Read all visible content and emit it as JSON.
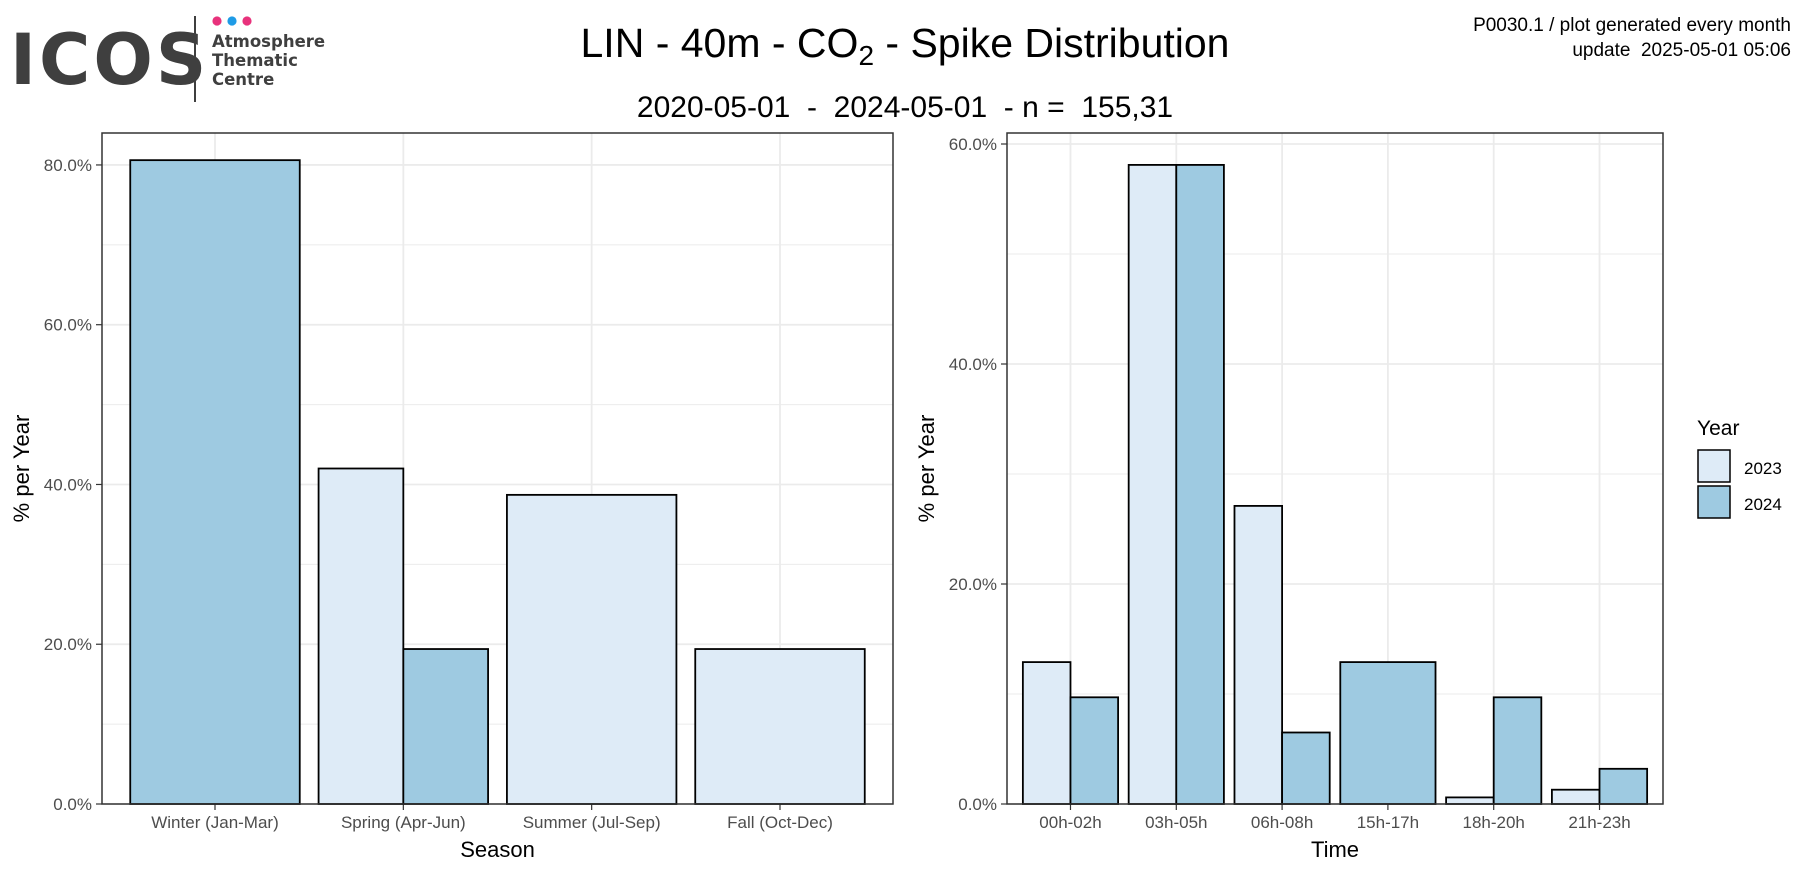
{
  "header": {
    "logo": {
      "wordmark": "ICOS",
      "line1": "Atmosphere",
      "line2": "Thematic",
      "line3": "Centre",
      "dot_colors": [
        "#e8327c",
        "#1e9be6",
        "#e8327c"
      ]
    },
    "title_prefix": "LIN - 40m - CO",
    "title_sub": "2",
    "title_suffix": " - Spike Distribution",
    "subtitle": "2020-05-01  -  2024-05-01  - n =  155,31",
    "meta_line1": "P0030.1 / plot generated every month",
    "meta_line2": "update  2025-05-01 05:06"
  },
  "legend": {
    "title": "Year",
    "entries": [
      {
        "label": "2023",
        "color": "#deebf7"
      },
      {
        "label": "2024",
        "color": "#9ecae1"
      }
    ],
    "placement": "right"
  },
  "colors": {
    "series_2023": "#deebf7",
    "series_2024": "#9ecae1",
    "grid": "#ebebeb",
    "axis_text": "#4d4d4d"
  },
  "chart_data": [
    {
      "type": "bar",
      "xlabel": "Season",
      "ylabel": "% per Year",
      "ylim": [
        0,
        84
      ],
      "ticks": [
        0,
        20,
        40,
        60,
        80
      ],
      "tick_labels": [
        "0.0%",
        "20.0%",
        "40.0%",
        "60.0%",
        "80.0%"
      ],
      "grid": true,
      "categories": [
        "Winter (Jan-Mar)",
        "Spring (Apr-Jun)",
        "Summer (Jul-Sep)",
        "Fall (Oct-Dec)"
      ],
      "series": [
        {
          "name": "2023",
          "values": [
            null,
            42,
            38.7,
            19.4
          ]
        },
        {
          "name": "2024",
          "values": [
            80.6,
            19.4,
            null,
            null
          ]
        }
      ]
    },
    {
      "type": "bar",
      "xlabel": "Time",
      "ylabel": "% per Year",
      "ylim": [
        0,
        61
      ],
      "ticks": [
        0,
        20,
        40,
        60
      ],
      "tick_labels": [
        "0.0%",
        "20.0%",
        "40.0%",
        "60.0%"
      ],
      "grid": true,
      "categories": [
        "00h-02h",
        "03h-05h",
        "06h-08h",
        "15h-17h",
        "18h-20h",
        "21h-23h"
      ],
      "series": [
        {
          "name": "2023",
          "values": [
            12.9,
            58.1,
            27.1,
            null,
            0.6,
            1.3
          ]
        },
        {
          "name": "2024",
          "values": [
            9.7,
            58.1,
            6.5,
            12.9,
            9.7,
            3.2
          ]
        }
      ]
    }
  ]
}
